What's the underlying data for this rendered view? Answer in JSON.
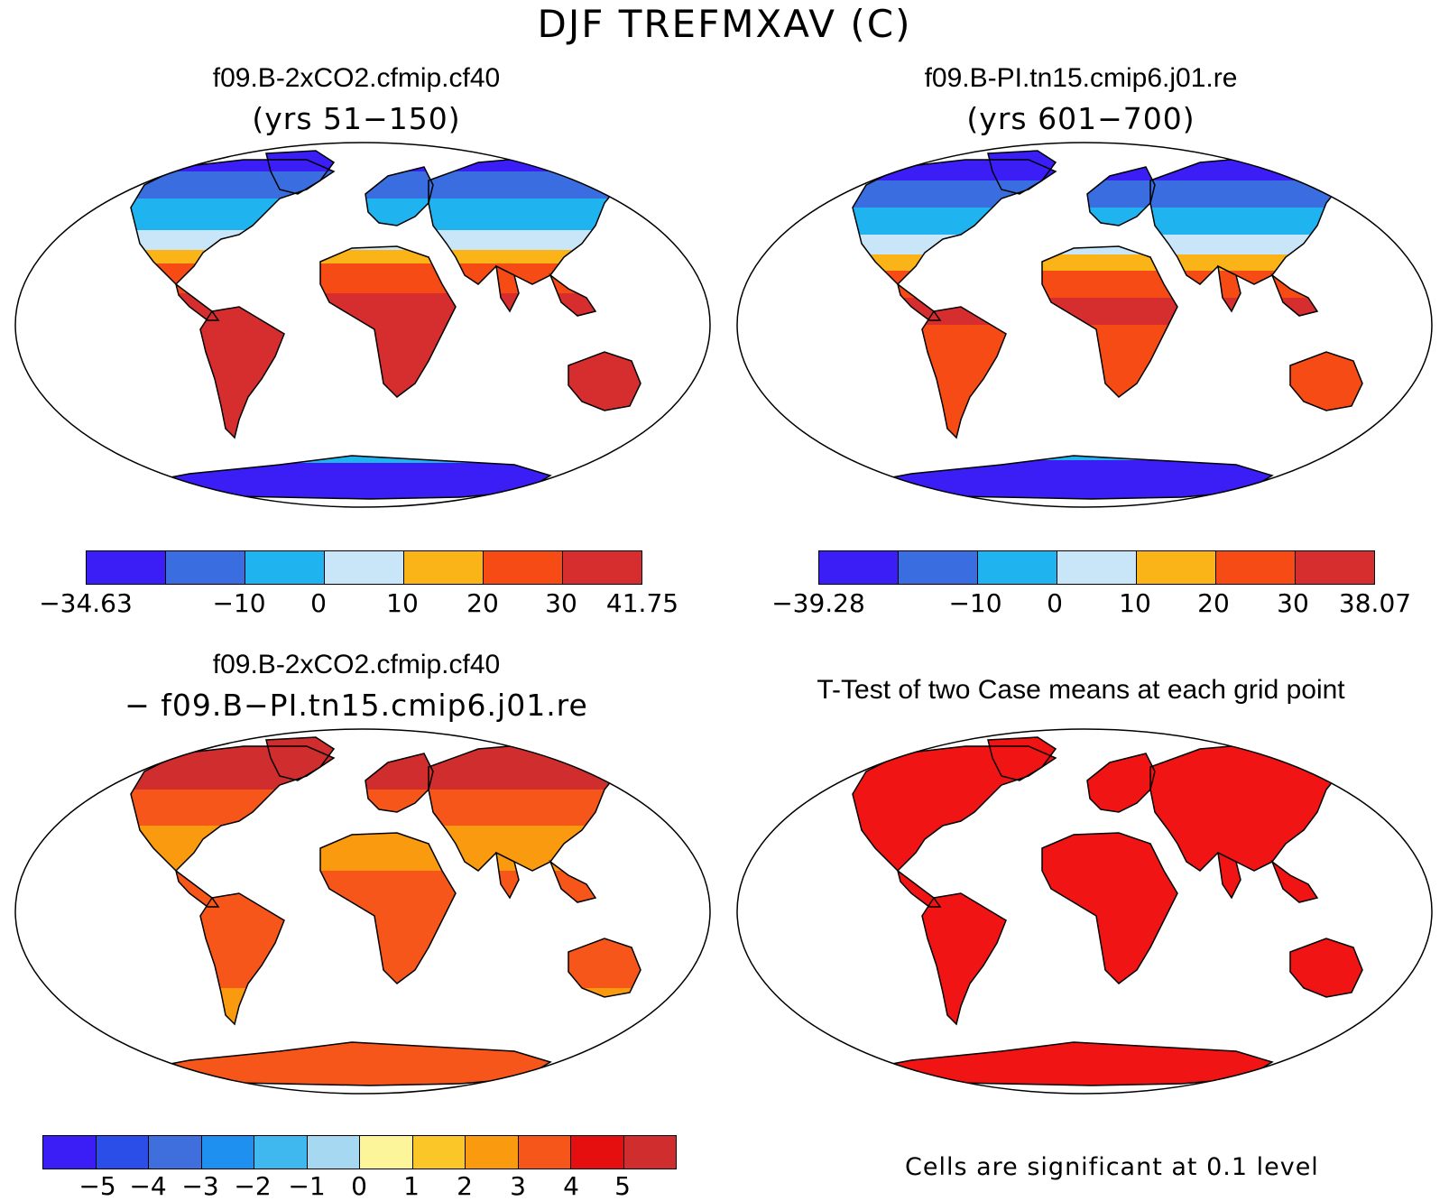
{
  "page": {
    "title": "DJF TREFMXAV (C)"
  },
  "panels": {
    "top_left": {
      "title": "f09.B-2xCO2.cfmip.cf40",
      "subtitle": "(yrs 51−150)",
      "colorbar": {
        "colors": [
          "#3b1ef5",
          "#3a6de0",
          "#1fb4f0",
          "#c8e6f7",
          "#fab418",
          "#f64b14",
          "#d62e2e"
        ],
        "labels": [
          "−34.63",
          "−10",
          "0",
          "10",
          "20",
          "30",
          "41.75"
        ]
      }
    },
    "top_right": {
      "title": "f09.B-PI.tn15.cmip6.j01.re",
      "subtitle": "(yrs 601−700)",
      "colorbar": {
        "colors": [
          "#3b1ef5",
          "#3a6de0",
          "#1fb4f0",
          "#c8e6f7",
          "#fab418",
          "#f64b14",
          "#d62e2e"
        ],
        "labels": [
          "−39.28",
          "−10",
          "0",
          "10",
          "20",
          "30",
          "38.07"
        ]
      }
    },
    "bottom_left": {
      "title": "f09.B-2xCO2.cfmip.cf40",
      "subtitle": "− f09.B−PI.tn15.cmip6.j01.re",
      "colorbar": {
        "colors": [
          "#3b1ef5",
          "#2b4ee8",
          "#3f6fdc",
          "#1e90f0",
          "#3fb8f0",
          "#a6d8f2",
          "#fdf59a",
          "#fac628",
          "#fa9a0e",
          "#f6561a",
          "#e60f0f",
          "#d02e2e"
        ],
        "labels": [
          "−5",
          "−4",
          "−3",
          "−2",
          "−1",
          "0",
          "1",
          "2",
          "3",
          "4",
          "5"
        ]
      }
    },
    "bottom_right": {
      "title": "T-Test of two Case means at each grid point",
      "note": "Cells are significant at 0.1 level",
      "fill_color": "#f01414"
    }
  }
}
